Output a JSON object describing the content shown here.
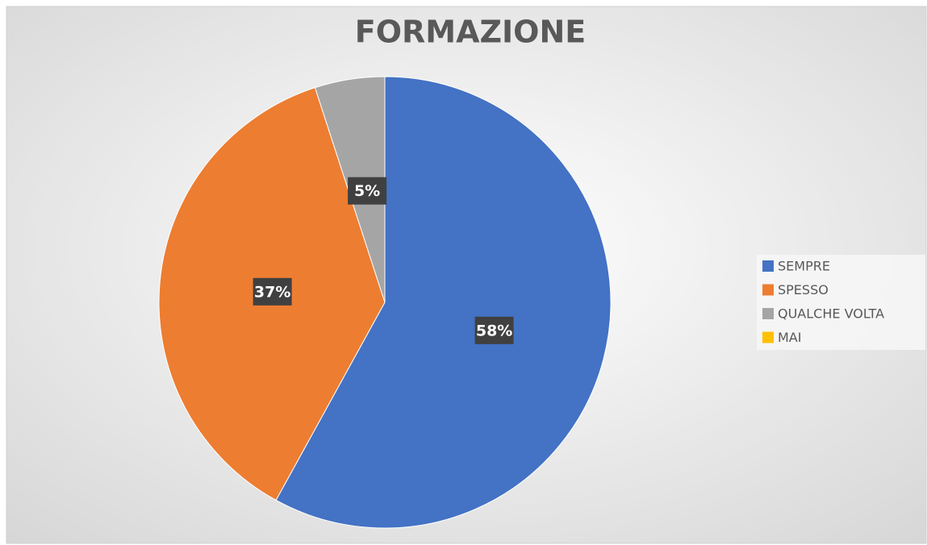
{
  "chart_data": {
    "type": "pie",
    "title": "FORMAZIONE",
    "categories": [
      "SEMPRE",
      "SPESSO",
      "QUALCHE VOLTA",
      "MAI"
    ],
    "values": [
      58,
      37,
      5,
      0
    ],
    "value_labels": [
      "58%",
      "37%",
      "5%",
      null
    ],
    "colors": [
      "#4472c4",
      "#ed7d31",
      "#a5a5a5",
      "#ffc000"
    ],
    "legend": "right"
  }
}
